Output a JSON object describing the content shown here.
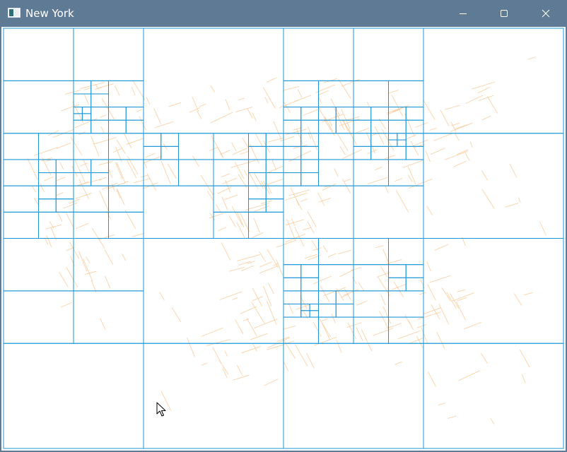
{
  "window": {
    "title": "New York",
    "controls": [
      "minimize",
      "maximize",
      "close"
    ],
    "icons": {
      "app": "app-window-icon",
      "minimize": "minimize-icon",
      "maximize": "maximize-icon",
      "close": "close-icon",
      "cursor": "mouse-pointer-icon"
    }
  },
  "colors": {
    "titlebar": "#5e7a94",
    "title_text": "#ffffff",
    "canvas_bg": "#ffffff",
    "quadtree_lines": "#1e96d6",
    "dense_cells": "#0a72c9",
    "street_lines": "#f9c58f"
  }
}
